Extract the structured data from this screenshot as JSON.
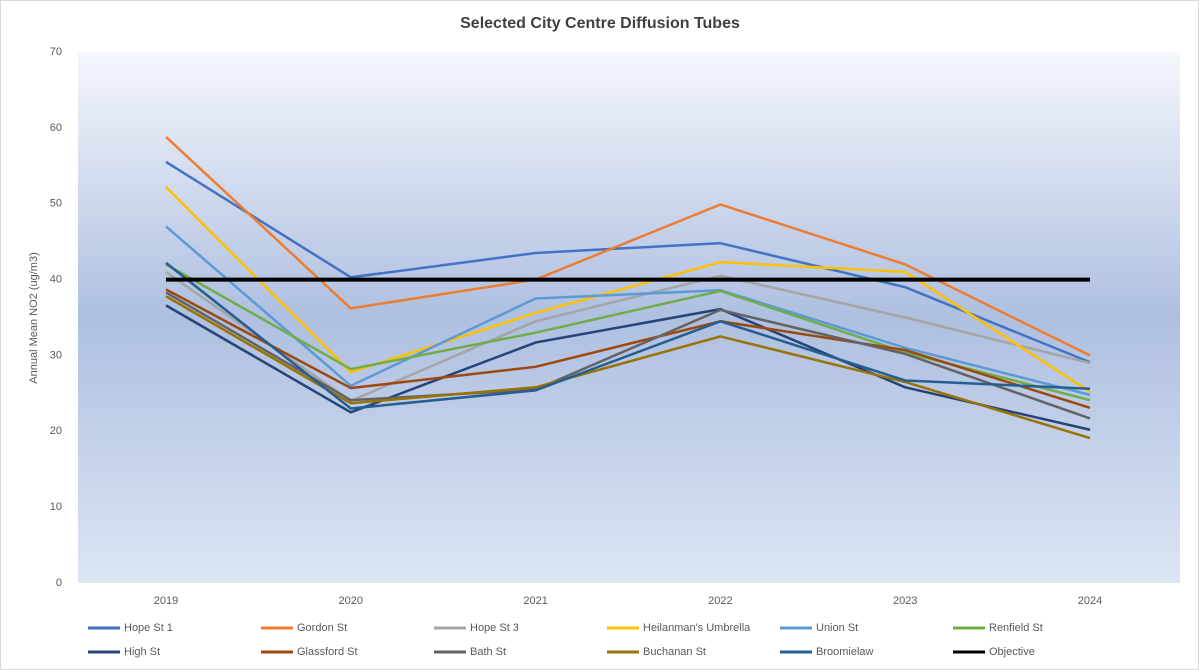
{
  "chart_data": {
    "type": "line",
    "title": "Selected City Centre Diffusion Tubes",
    "y_label": "Annual Mean NO2 (ug/m3)",
    "categories": [
      "2019",
      "2020",
      "2021",
      "2022",
      "2023",
      "2024"
    ],
    "ylim": [
      0,
      70
    ],
    "yticks": [
      0,
      10,
      20,
      30,
      40,
      50,
      60,
      70
    ],
    "grid": false,
    "legend": "bottom",
    "series": [
      {
        "name": "Hope St 1",
        "color": "#4472c4",
        "values": [
          55.5,
          40.3,
          43.5,
          44.8,
          39,
          29.1
        ]
      },
      {
        "name": "Gordon St",
        "color": "#ed7d31",
        "values": [
          58.8,
          36.2,
          40,
          49.9,
          42,
          30
        ]
      },
      {
        "name": "Hope St 3",
        "color": "#a5a5a5",
        "values": [
          41,
          24,
          34.5,
          40.5,
          35,
          29
        ]
      },
      {
        "name": "Heilanman's Umbrella",
        "color": "#ffc000",
        "values": [
          52.2,
          27.8,
          35.6,
          42.3,
          41,
          25.2
        ]
      },
      {
        "name": "Union St",
        "color": "#5b9bd5",
        "values": [
          47,
          26,
          37.5,
          38.6,
          31,
          24.8
        ]
      },
      {
        "name": "Renfield St",
        "color": "#70ad47",
        "values": [
          42,
          28.2,
          33,
          38.5,
          30.4,
          24.1
        ]
      },
      {
        "name": "High St",
        "color": "#264478",
        "values": [
          36.6,
          22.5,
          31.7,
          36.1,
          25.8,
          20.2
        ]
      },
      {
        "name": "Glassford St",
        "color": "#9e480e",
        "values": [
          38.7,
          25.7,
          28.5,
          34.5,
          30.7,
          23.1
        ]
      },
      {
        "name": "Bath St",
        "color": "#636363",
        "values": [
          38.3,
          24.1,
          25.5,
          36,
          30.2,
          21.7
        ]
      },
      {
        "name": "Buchanan St",
        "color": "#997300",
        "values": [
          37.8,
          23.7,
          25.8,
          32.5,
          26.5,
          19.1
        ]
      },
      {
        "name": "Broomielaw",
        "color": "#255e91",
        "values": [
          42.2,
          23,
          25.4,
          34.5,
          26.7,
          25.6
        ]
      },
      {
        "name": "Objective",
        "color": "#000000",
        "values": [
          40,
          40,
          40,
          40,
          40,
          40
        ]
      }
    ]
  }
}
